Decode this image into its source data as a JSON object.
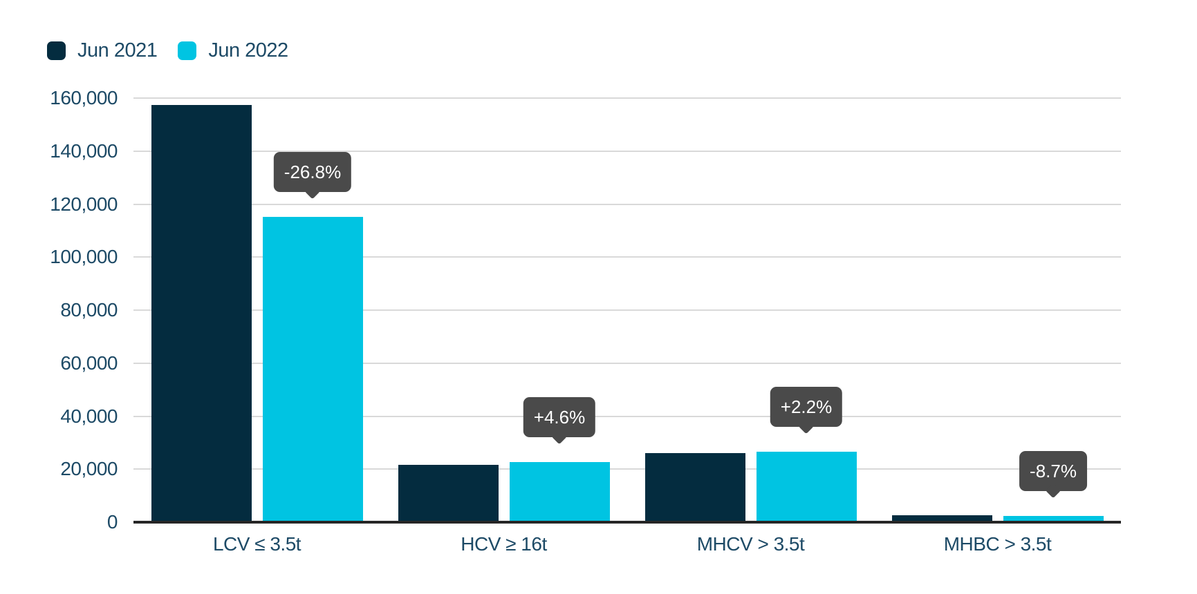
{
  "chart_data": {
    "type": "bar",
    "title": "",
    "xlabel": "",
    "ylabel": "",
    "categories": [
      "LCV ≤ 3.5t",
      "HCV ≥ 16t",
      "MHCV > 3.5t",
      "MHBC > 3.5t"
    ],
    "series": [
      {
        "name": "Jun 2021",
        "color": "#042c3f",
        "values": [
          157500,
          21600,
          26000,
          2600
        ]
      },
      {
        "name": "Jun 2022",
        "color": "#00c4e2",
        "values": [
          115300,
          22600,
          26600,
          2375
        ]
      }
    ],
    "change_labels": [
      "-26.8%",
      "+4.6%",
      "+2.2%",
      "-8.7%"
    ],
    "ylim": [
      0,
      160000
    ],
    "ytick_step": 20000,
    "ytick_labels": [
      "0",
      "20,000",
      "40,000",
      "60,000",
      "80,000",
      "100,000",
      "120,000",
      "140,000",
      "160,000"
    ],
    "grid": true,
    "legend_position": "top-left"
  },
  "colors": {
    "background": "#ffffff",
    "axis_text": "#1d4a66",
    "gridline": "#d9d9d9",
    "baseline": "#262626",
    "tooltip_bg": "#4a4a4a",
    "tooltip_text": "#ffffff",
    "series_jun_2021": "#042c3f",
    "series_jun_2022": "#00c4e2"
  }
}
